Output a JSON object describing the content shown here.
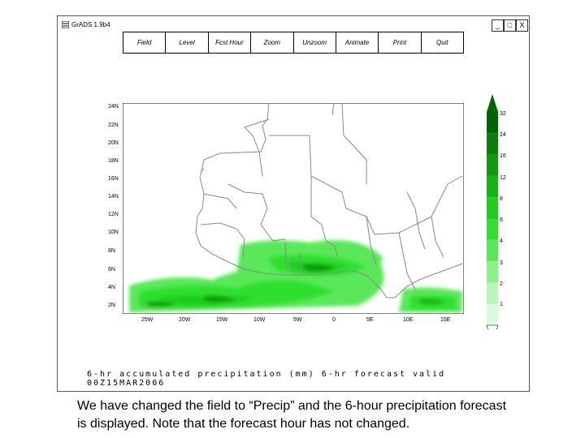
{
  "window": {
    "title": "GrADS 1.9b4",
    "controls": [
      "_",
      "□",
      "X"
    ]
  },
  "menu": [
    "Field",
    "Level",
    "Fcst Hour",
    "Zoom",
    "Unzoom",
    "Animate",
    "Print",
    "Quit"
  ],
  "map": {
    "lat_labels": [
      "24N",
      "22N",
      "20N",
      "18N",
      "16N",
      "14N",
      "12N",
      "10N",
      "8N",
      "6N",
      "4N",
      "2N"
    ],
    "lon_labels": [
      "25W",
      "20W",
      "15W",
      "10W",
      "5W",
      "0",
      "5E",
      "10E",
      "15E"
    ],
    "colorbar_labels": [
      "32",
      "24",
      "16",
      "12",
      "8",
      "6",
      "4",
      "3",
      "2",
      "1"
    ],
    "colors": [
      "#006400",
      "#0a7d0a",
      "#109a10",
      "#14b414",
      "#1ecd1e",
      "#2fe02f",
      "#5ae85a",
      "#8af08a",
      "#b6f6b6",
      "#dcfadc"
    ]
  },
  "footer": "6-hr accumulated precipitation (mm) 6-hr forecast  valid  00Z15MAR2006",
  "caption": "We have changed the field to “Precip” and the 6-hour precipitation forecast is displayed. Note that the forecast hour has not changed."
}
